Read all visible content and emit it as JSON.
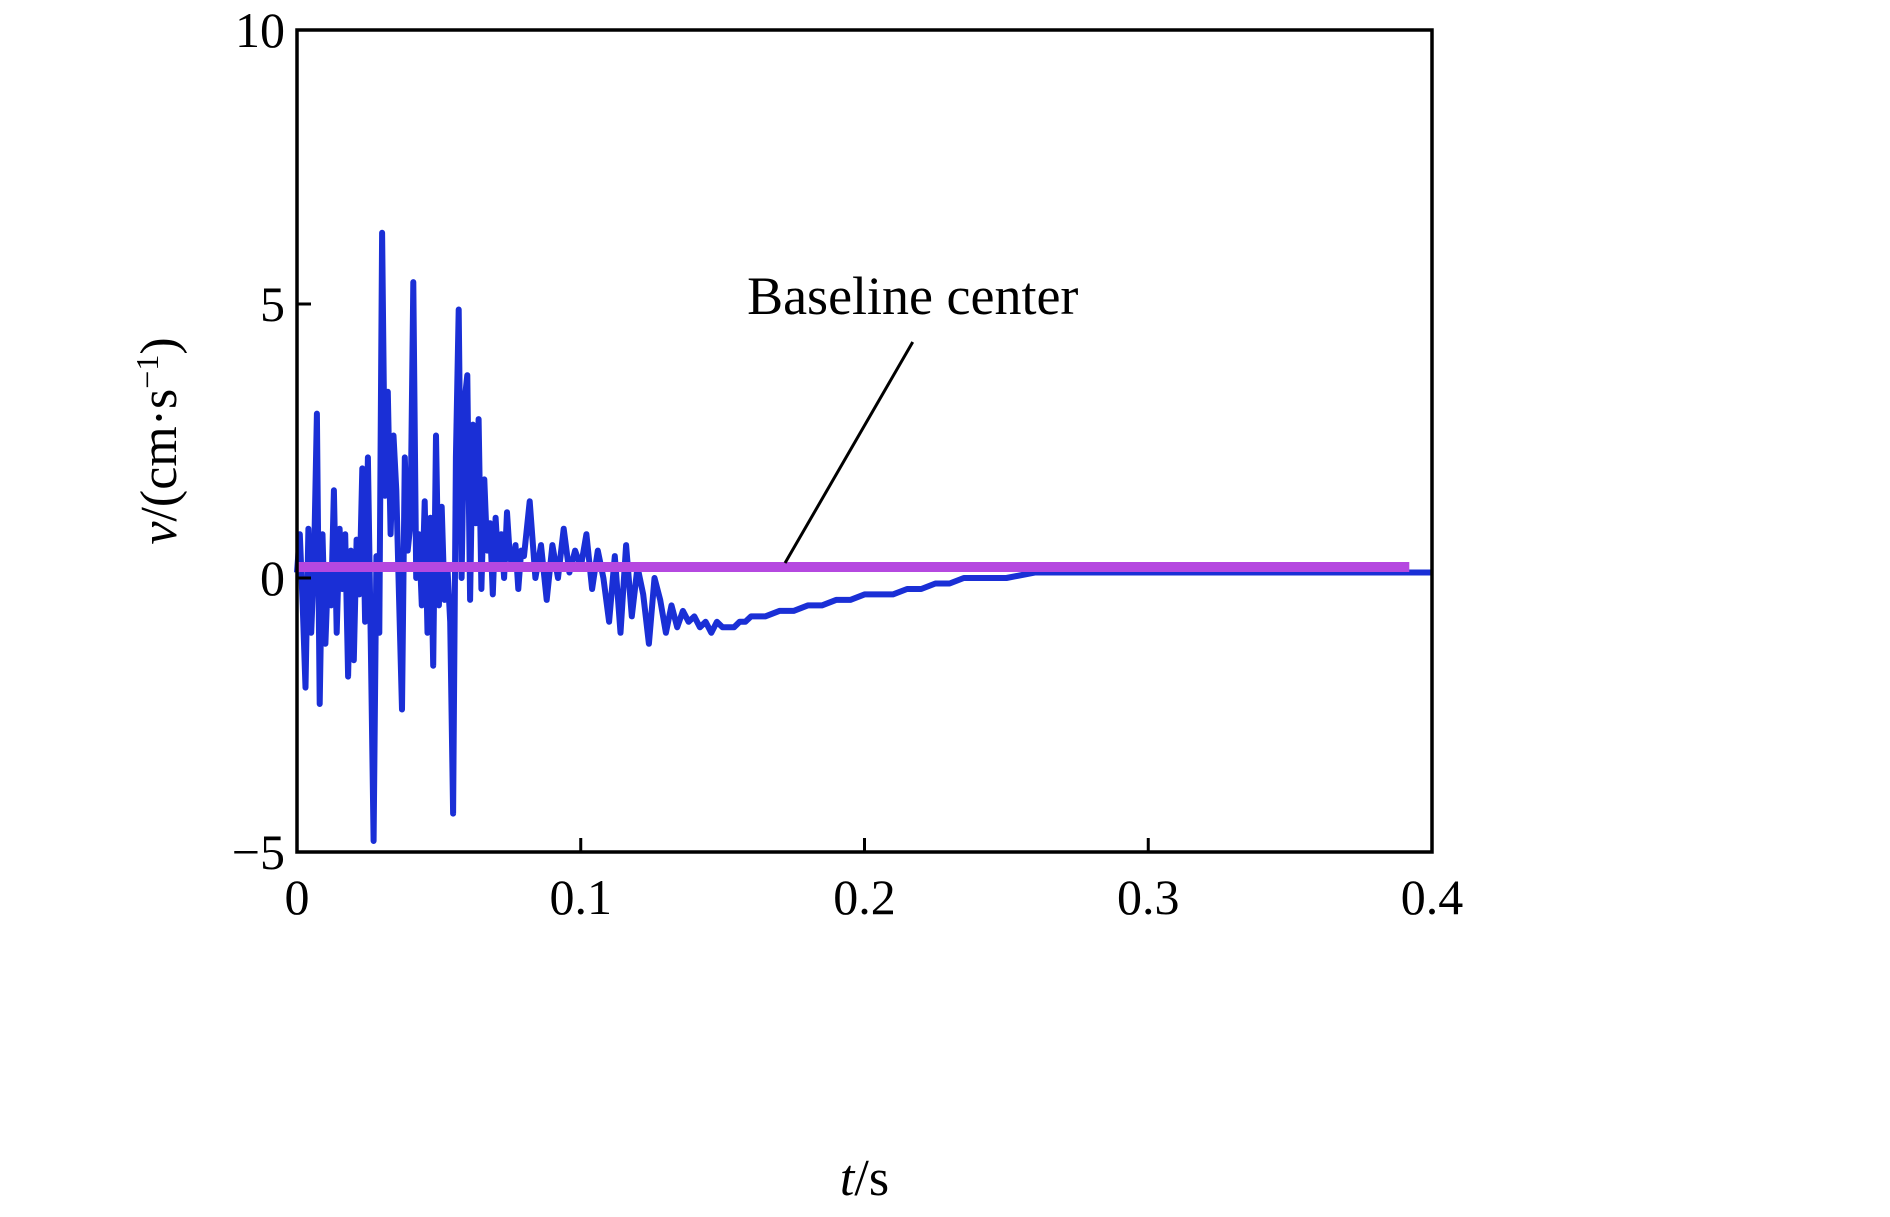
{
  "chart_data": {
    "type": "line",
    "xlim": [
      0,
      0.4
    ],
    "ylim": [
      -5,
      10
    ],
    "grid": false,
    "x_ticks": [
      0,
      0.1,
      0.2,
      0.3,
      0.4
    ],
    "x_tick_labels": [
      "0",
      "0.1",
      "0.2",
      "0.3",
      "0.4"
    ],
    "y_ticks": [
      -5,
      0,
      5,
      10
    ],
    "y_tick_labels": [
      "−5",
      "0",
      "5",
      "10"
    ],
    "xlabel": {
      "italic": "t",
      "rest": "/s"
    },
    "ylabel": {
      "italic": "v",
      "rest": "/(cm·s",
      "sup": "−1",
      "close": ")"
    },
    "annotation": {
      "text": "Baseline center",
      "points_to": {
        "x": 0.172,
        "y": 0.2
      },
      "text_at": {
        "x": 0.217,
        "y": 5.0
      }
    },
    "series": [
      {
        "role": "velocity",
        "color": "#1a2fd6",
        "x": [
          0,
          0.001,
          0.002,
          0.003,
          0.004,
          0.005,
          0.006,
          0.007,
          0.008,
          0.009,
          0.01,
          0.011,
          0.012,
          0.013,
          0.014,
          0.015,
          0.016,
          0.017,
          0.018,
          0.019,
          0.02,
          0.021,
          0.022,
          0.023,
          0.024,
          0.025,
          0.026,
          0.027,
          0.028,
          0.029,
          0.03,
          0.031,
          0.032,
          0.033,
          0.034,
          0.035,
          0.036,
          0.037,
          0.038,
          0.039,
          0.04,
          0.041,
          0.042,
          0.043,
          0.044,
          0.045,
          0.046,
          0.047,
          0.048,
          0.049,
          0.05,
          0.051,
          0.052,
          0.053,
          0.054,
          0.055,
          0.056,
          0.057,
          0.058,
          0.059,
          0.06,
          0.061,
          0.062,
          0.063,
          0.064,
          0.065,
          0.066,
          0.067,
          0.068,
          0.069,
          0.07,
          0.071,
          0.072,
          0.073,
          0.074,
          0.075,
          0.076,
          0.077,
          0.078,
          0.079,
          0.08,
          0.082,
          0.084,
          0.086,
          0.088,
          0.09,
          0.092,
          0.094,
          0.096,
          0.098,
          0.1,
          0.102,
          0.104,
          0.106,
          0.108,
          0.11,
          0.112,
          0.114,
          0.116,
          0.118,
          0.12,
          0.122,
          0.124,
          0.126,
          0.128,
          0.13,
          0.132,
          0.134,
          0.136,
          0.138,
          0.14,
          0.142,
          0.144,
          0.146,
          0.148,
          0.15,
          0.152,
          0.154,
          0.156,
          0.158,
          0.16,
          0.165,
          0.17,
          0.175,
          0.18,
          0.185,
          0.19,
          0.195,
          0.2,
          0.205,
          0.21,
          0.215,
          0.22,
          0.225,
          0.23,
          0.235,
          0.24,
          0.25,
          0.26,
          0.27,
          0.28,
          0.29,
          0.3,
          0.31,
          0.32,
          0.33,
          0.34,
          0.35,
          0.36,
          0.37,
          0.38,
          0.39,
          0.4
        ],
        "y": [
          0.1,
          0.8,
          -0.5,
          -2.0,
          0.9,
          -1.0,
          0.3,
          3.0,
          -2.3,
          0.8,
          -1.2,
          0.2,
          -0.5,
          1.6,
          -1.0,
          0.9,
          -0.2,
          0.8,
          -1.8,
          0.5,
          -1.5,
          0.7,
          -0.3,
          2.0,
          -0.8,
          2.2,
          -1.2,
          -4.8,
          0.4,
          -1.0,
          6.3,
          1.5,
          3.4,
          0.8,
          2.6,
          1.6,
          -0.4,
          -2.4,
          2.2,
          0.5,
          1.0,
          5.4,
          0.0,
          0.8,
          -0.5,
          1.4,
          -1.0,
          1.1,
          -1.6,
          2.6,
          -0.5,
          1.3,
          -0.4,
          0.2,
          -0.8,
          -4.3,
          2.2,
          4.9,
          0.0,
          3.2,
          3.7,
          -0.4,
          2.8,
          1.0,
          2.9,
          -0.2,
          1.8,
          0.5,
          1.0,
          -0.3,
          1.1,
          0.2,
          0.8,
          0.0,
          1.2,
          0.4,
          0.2,
          0.6,
          -0.2,
          0.5,
          0.4,
          1.4,
          0.0,
          0.6,
          -0.4,
          0.6,
          0.0,
          0.9,
          0.1,
          0.5,
          0.2,
          0.8,
          -0.2,
          0.5,
          0.0,
          -0.8,
          0.4,
          -1.0,
          0.6,
          -0.7,
          0.2,
          -0.3,
          -1.2,
          0.0,
          -0.4,
          -1.0,
          -0.5,
          -0.9,
          -0.6,
          -0.8,
          -0.7,
          -0.9,
          -0.8,
          -1.0,
          -0.8,
          -0.9,
          -0.9,
          -0.9,
          -0.8,
          -0.8,
          -0.7,
          -0.7,
          -0.6,
          -0.6,
          -0.5,
          -0.5,
          -0.4,
          -0.4,
          -0.3,
          -0.3,
          -0.3,
          -0.2,
          -0.2,
          -0.1,
          -0.1,
          0.0,
          0.0,
          0.0,
          0.1,
          0.1,
          0.1,
          0.1,
          0.1,
          0.1,
          0.1,
          0.1,
          0.1,
          0.1,
          0.1,
          0.1,
          0.1,
          0.1,
          0.1
        ]
      },
      {
        "role": "baseline",
        "color": "#b548e0",
        "x": [
          0,
          0.392
        ],
        "y": [
          0.2,
          0.2
        ]
      }
    ]
  }
}
